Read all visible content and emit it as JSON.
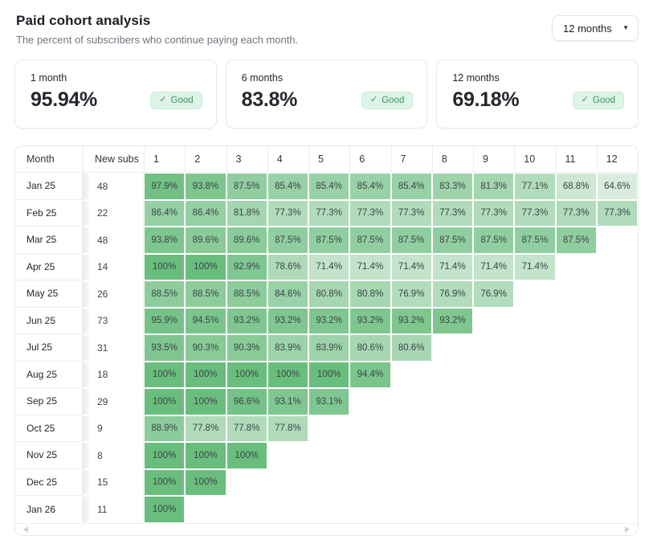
{
  "header": {
    "title": "Paid cohort analysis",
    "subtitle": "The percent of subscribers who continue paying each month.",
    "range_selector_value": "12 months"
  },
  "summary_cards": [
    {
      "label": "1 month",
      "value": "95.94%",
      "badge_label": "Good"
    },
    {
      "label": "6 months",
      "value": "83.8%",
      "badge_label": "Good"
    },
    {
      "label": "12 months",
      "value": "69.18%",
      "badge_label": "Good"
    }
  ],
  "colors": {
    "cell_color_high": "#69be7d",
    "cell_color_low": "#d9ecdd",
    "scale_min_value": 64.6,
    "scale_max_value": 100,
    "badge_bg": "#def4e7",
    "badge_border": "#c8ecd7",
    "badge_text": "#35985e"
  },
  "chart_data": {
    "type": "heatmap",
    "title": "Paid cohort analysis",
    "subtitle": "The percent of subscribers who continue paying each month.",
    "columns": [
      "Month",
      "New subs",
      "1",
      "2",
      "3",
      "4",
      "5",
      "6",
      "7",
      "8",
      "9",
      "10",
      "11",
      "12"
    ],
    "rows": [
      {
        "month": "Jan 25",
        "new_subs": "48",
        "retention": [
          "97.9%",
          "93.8%",
          "87.5%",
          "85.4%",
          "85.4%",
          "85.4%",
          "85.4%",
          "83.3%",
          "81.3%",
          "77.1%",
          "68.8%",
          "64.6%"
        ]
      },
      {
        "month": "Feb 25",
        "new_subs": "22",
        "retention": [
          "86.4%",
          "86.4%",
          "81.8%",
          "77.3%",
          "77.3%",
          "77.3%",
          "77.3%",
          "77.3%",
          "77.3%",
          "77.3%",
          "77.3%",
          "77.3%"
        ]
      },
      {
        "month": "Mar 25",
        "new_subs": "48",
        "retention": [
          "93.8%",
          "89.6%",
          "89.6%",
          "87.5%",
          "87.5%",
          "87.5%",
          "87.5%",
          "87.5%",
          "87.5%",
          "87.5%",
          "87.5%"
        ]
      },
      {
        "month": "Apr 25",
        "new_subs": "14",
        "retention": [
          "100%",
          "100%",
          "92.9%",
          "78.6%",
          "71.4%",
          "71.4%",
          "71.4%",
          "71.4%",
          "71.4%",
          "71.4%"
        ]
      },
      {
        "month": "May 25",
        "new_subs": "26",
        "retention": [
          "88.5%",
          "88.5%",
          "88.5%",
          "84.6%",
          "80.8%",
          "80.8%",
          "76.9%",
          "76.9%",
          "76.9%"
        ]
      },
      {
        "month": "Jun 25",
        "new_subs": "73",
        "retention": [
          "95.9%",
          "94.5%",
          "93.2%",
          "93.2%",
          "93.2%",
          "93.2%",
          "93.2%",
          "93.2%"
        ]
      },
      {
        "month": "Jul 25",
        "new_subs": "31",
        "retention": [
          "93.5%",
          "90.3%",
          "90.3%",
          "83.9%",
          "83.9%",
          "80.6%",
          "80.6%"
        ]
      },
      {
        "month": "Aug 25",
        "new_subs": "18",
        "retention": [
          "100%",
          "100%",
          "100%",
          "100%",
          "100%",
          "94.4%"
        ]
      },
      {
        "month": "Sep 25",
        "new_subs": "29",
        "retention": [
          "100%",
          "100%",
          "96.6%",
          "93.1%",
          "93.1%"
        ]
      },
      {
        "month": "Oct 25",
        "new_subs": "9",
        "retention": [
          "88.9%",
          "77.8%",
          "77.8%",
          "77.8%"
        ]
      },
      {
        "month": "Nov 25",
        "new_subs": "8",
        "retention": [
          "100%",
          "100%",
          "100%"
        ]
      },
      {
        "month": "Dec 25",
        "new_subs": "15",
        "retention": [
          "100%",
          "100%"
        ]
      },
      {
        "month": "Jan 26",
        "new_subs": "11",
        "retention": [
          "100%"
        ]
      }
    ]
  }
}
